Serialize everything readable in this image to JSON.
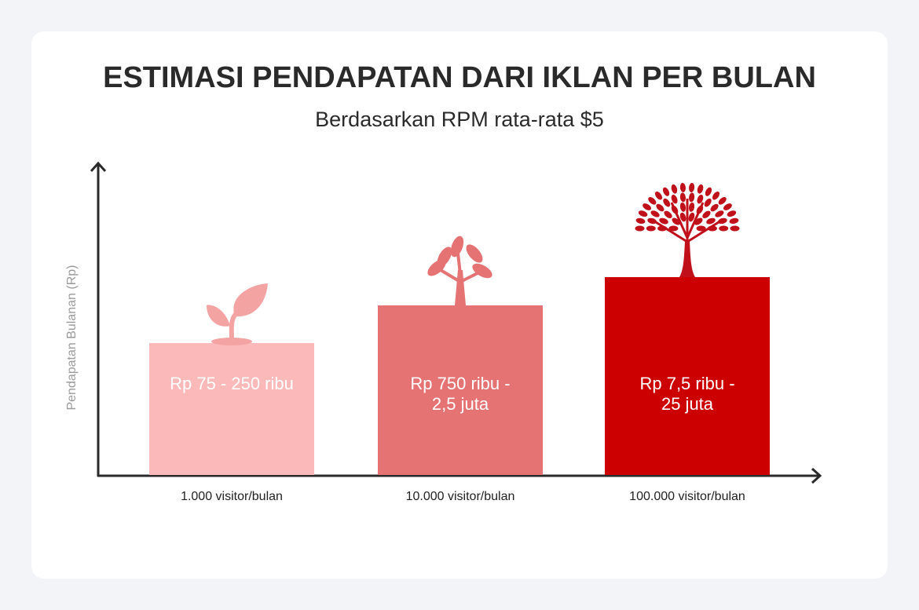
{
  "header": {
    "title": "ESTIMASI PENDAPATAN DARI IKLAN PER BULAN",
    "subtitle": "Berdasarkan RPM rata-rata $5"
  },
  "axis": {
    "y_label": "Pendapatan Bulanan (Rp)"
  },
  "bars": [
    {
      "category": "1.000 visitor/bulan",
      "label_lines": [
        "Rp 75 - 250 ribu"
      ],
      "color": "#fbb9b9",
      "plant_color": "#f4a3a3"
    },
    {
      "category": "10.000 visitor/bulan",
      "label_lines": [
        "Rp 750 ribu -",
        "2,5 juta"
      ],
      "color": "#e57373",
      "plant_color": "#e57373"
    },
    {
      "category": "100.000 visitor/bulan",
      "label_lines": [
        "Rp 7,5 ribu -",
        "25 juta"
      ],
      "color": "#cc0000",
      "plant_color": "#c0101a"
    }
  ]
}
